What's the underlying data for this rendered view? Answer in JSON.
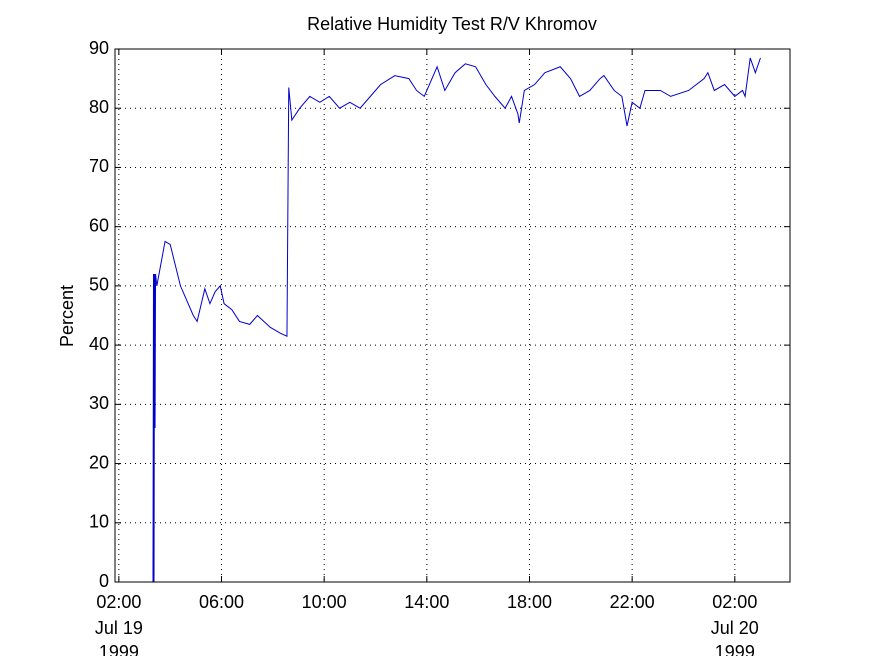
{
  "chart_data": {
    "type": "line",
    "title": "Relative Humidity Test R/V Khromov",
    "ylabel": "Percent",
    "xlim": [
      1.85,
      28.15
    ],
    "ylim": [
      0,
      90
    ],
    "xticks": [
      {
        "value": 2,
        "label": "02:00"
      },
      {
        "value": 6,
        "label": "06:00"
      },
      {
        "value": 10,
        "label": "10:00"
      },
      {
        "value": 14,
        "label": "14:00"
      },
      {
        "value": 18,
        "label": "18:00"
      },
      {
        "value": 22,
        "label": "22:00"
      },
      {
        "value": 26,
        "label": "02:00"
      }
    ],
    "x_date_labels": [
      {
        "value": 2,
        "lines": [
          "Jul 19",
          "1999"
        ]
      },
      {
        "value": 26,
        "lines": [
          "Jul 20",
          "1999"
        ]
      }
    ],
    "yticks": [
      0,
      10,
      20,
      30,
      40,
      50,
      60,
      70,
      80,
      90
    ],
    "grid": true,
    "series": [
      {
        "color": "#0000cc",
        "x": [
          3.33,
          3.35,
          3.37,
          3.39,
          3.41,
          3.43,
          3.48,
          3.8,
          4.0,
          4.4,
          4.6,
          4.9,
          5.05,
          5.35,
          5.55,
          5.75,
          5.95,
          6.1,
          6.4,
          6.7,
          7.1,
          7.4,
          7.9,
          8.3,
          8.55,
          8.62,
          8.74,
          9.05,
          9.44,
          9.83,
          10.2,
          10.6,
          11.0,
          11.4,
          11.8,
          12.2,
          12.75,
          13.3,
          13.6,
          13.9,
          14.1,
          14.4,
          14.7,
          15.1,
          15.5,
          15.9,
          16.3,
          16.65,
          17.05,
          17.3,
          17.55,
          17.6,
          17.8,
          18.2,
          18.6,
          19.2,
          19.6,
          19.95,
          20.35,
          20.75,
          20.9,
          21.3,
          21.6,
          21.8,
          22.0,
          22.3,
          22.5,
          23.1,
          23.5,
          24.2,
          24.8,
          24.95,
          25.2,
          25.6,
          26.0,
          26.3,
          26.4,
          26.6,
          26.8,
          27.0
        ],
        "values": [
          0,
          52,
          0,
          52,
          26,
          52,
          50,
          57.5,
          57,
          50,
          48,
          45,
          44,
          49.5,
          47,
          49,
          50,
          47,
          46,
          44,
          43.5,
          45,
          43,
          42,
          41.5,
          83.5,
          78,
          80,
          82,
          81,
          82,
          80,
          81,
          80,
          82,
          84,
          85.5,
          85,
          83,
          82,
          84,
          87,
          83,
          86,
          87.5,
          87,
          84,
          82,
          80,
          82,
          79,
          77.5,
          83,
          84,
          86,
          87,
          85,
          82,
          83,
          85,
          85.5,
          83,
          82,
          77,
          81,
          80,
          83,
          83,
          82,
          83,
          85,
          86,
          83,
          84,
          82,
          83,
          82,
          88.5,
          86,
          88.5
        ]
      }
    ]
  }
}
